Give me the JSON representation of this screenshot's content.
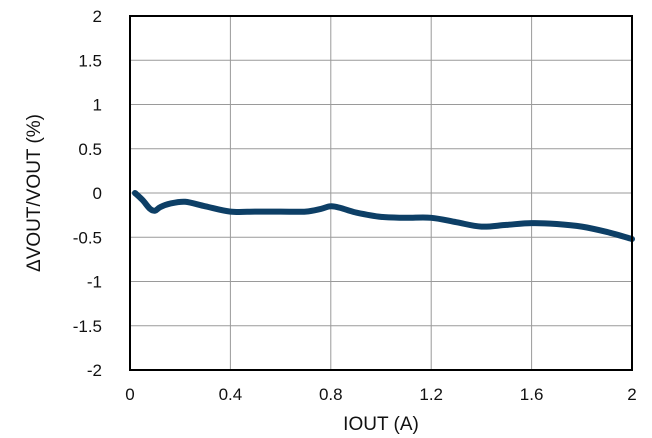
{
  "chart_data": {
    "type": "line",
    "xlabel": "IOUT (A)",
    "ylabel": "ΔVOUT/VOUT (%)",
    "xlim": [
      0,
      2
    ],
    "ylim": [
      -2,
      2
    ],
    "x_ticks": [
      "0",
      "0.4",
      "0.8",
      "1.2",
      "1.6",
      "2"
    ],
    "y_ticks": [
      "2",
      "1.5",
      "1",
      "0.5",
      "0",
      "-0.5",
      "-1",
      "-1.5",
      "-2"
    ],
    "grid": true,
    "legend": "none",
    "series": [
      {
        "color": "#0d3f66",
        "x": [
          0.02,
          0.05,
          0.08,
          0.1,
          0.12,
          0.16,
          0.22,
          0.3,
          0.4,
          0.5,
          0.6,
          0.7,
          0.76,
          0.8,
          0.84,
          0.9,
          1.0,
          1.1,
          1.2,
          1.3,
          1.4,
          1.5,
          1.6,
          1.7,
          1.8,
          1.9,
          2.0
        ],
        "y": [
          0.0,
          -0.08,
          -0.18,
          -0.2,
          -0.16,
          -0.12,
          -0.1,
          -0.15,
          -0.21,
          -0.21,
          -0.21,
          -0.21,
          -0.18,
          -0.15,
          -0.17,
          -0.22,
          -0.27,
          -0.28,
          -0.28,
          -0.33,
          -0.38,
          -0.36,
          -0.34,
          -0.35,
          -0.38,
          -0.44,
          -0.52
        ]
      }
    ]
  }
}
